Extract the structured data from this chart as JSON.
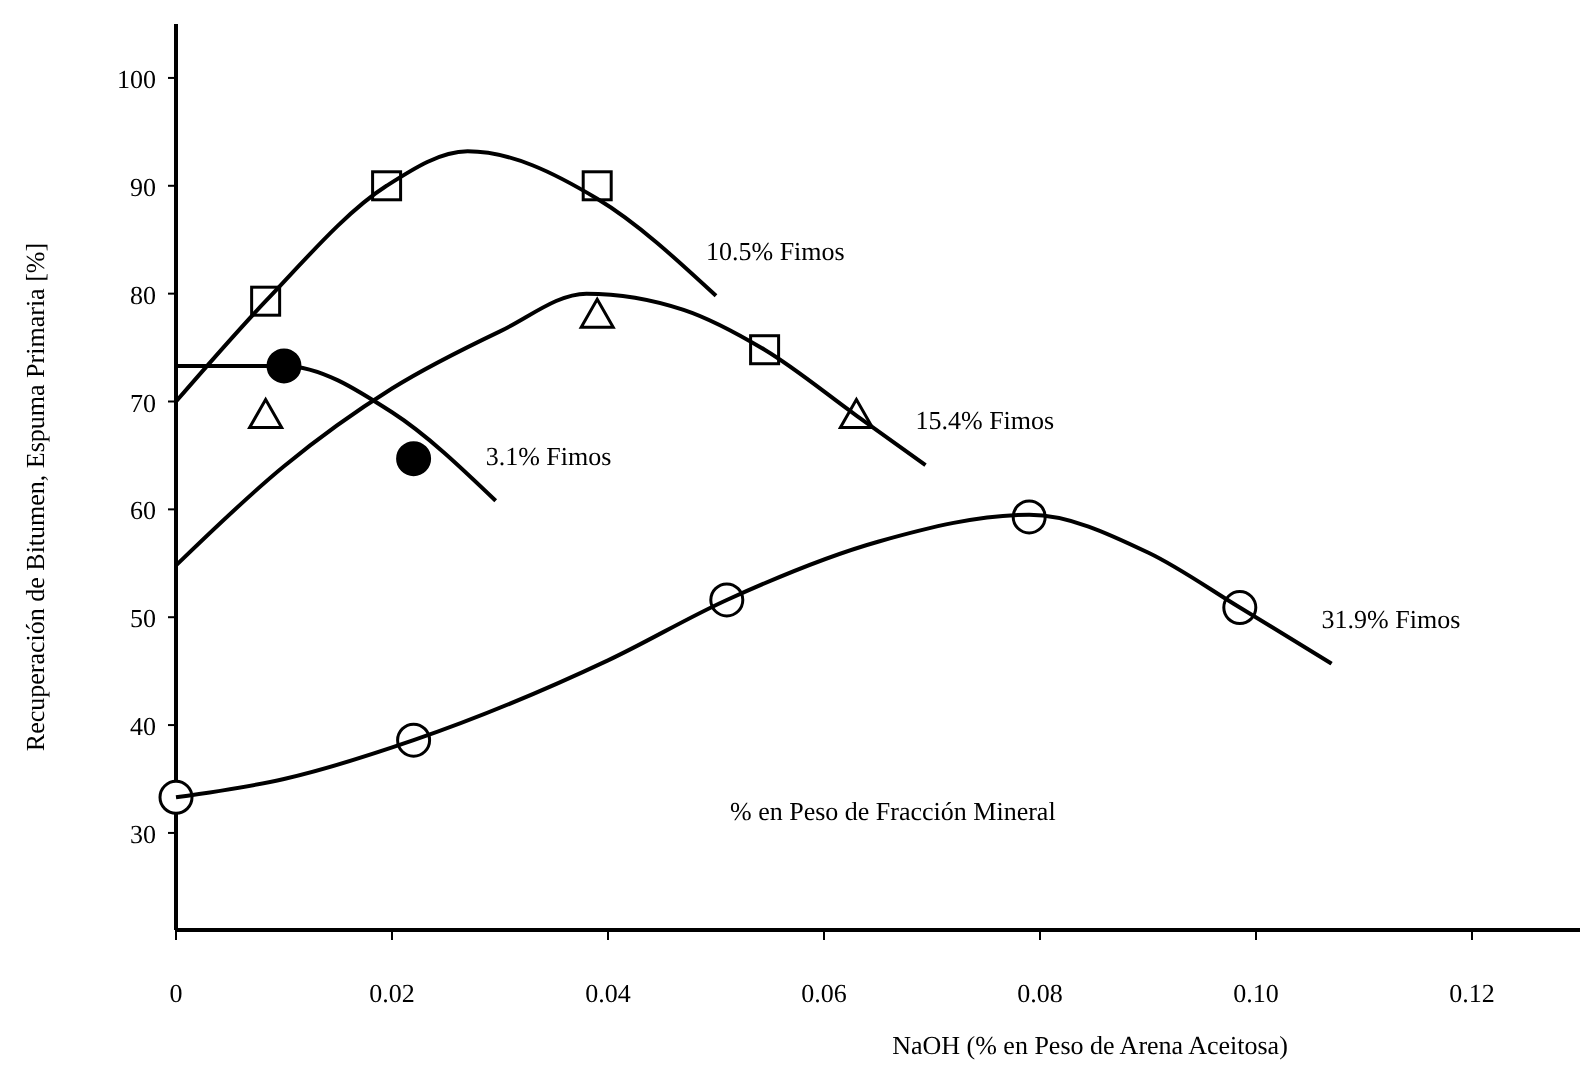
{
  "chart_data": {
    "type": "scatter",
    "xlabel": "NaOH (% en Peso de Arena Aceitosa)",
    "ylabel": "Recuperación de Bitumen, Espuma Primaria [%]",
    "xlim": [
      0,
      0.13
    ],
    "ylim": [
      21,
      105
    ],
    "xticks": [
      0,
      {
        "value": 0.02,
        "label": "0.02"
      },
      {
        "value": 0.04,
        "label": "0.04"
      },
      {
        "value": 0.06,
        "label": "0.06"
      },
      {
        "value": 0.08,
        "label": "0.08"
      },
      {
        "value": 0.1,
        "label": "0.10"
      },
      {
        "value": 0.12,
        "label": "0.12"
      }
    ],
    "yticks": [
      30,
      40,
      50,
      60,
      70,
      80,
      90,
      100
    ],
    "annotations": [
      "% en Peso de Fracción Mineral"
    ],
    "series": [
      {
        "marker": "square",
        "color": "#ffffff",
        "x": [
          0.0083,
          0.0195,
          0.039,
          0.0545
        ],
        "values": [
          79.3,
          90,
          90,
          74.8
        ]
      },
      {
        "marker": "triangle",
        "color": "#ffffff",
        "x": [
          0.0083,
          0.039,
          0.063
        ],
        "values": [
          68.7,
          78,
          68.7
        ]
      },
      {
        "marker": "circle",
        "color": "#000000",
        "x": [
          0.01,
          0.022
        ],
        "values": [
          73.3,
          64.7
        ]
      },
      {
        "marker": "circle",
        "color": "#ffffff",
        "x": [
          0,
          0.022,
          0.051,
          0.079,
          0.0985
        ],
        "values": [
          33.3,
          38.6,
          51.6,
          59.3,
          50.9
        ]
      },
      {
        "type": "line",
        "name": "10.5% Fimos",
        "color": "#000000",
        "x": [
          0,
          0.0083,
          0.0195,
          0.027,
          0.039,
          0.05
        ],
        "values": [
          70,
          79.3,
          90,
          93.2,
          88.8,
          79.8
        ]
      },
      {
        "type": "line",
        "name": "15.4% Fimos",
        "color": "#000000",
        "x": [
          0,
          0.01,
          0.02,
          0.03,
          0.038,
          0.047,
          0.0545,
          0.063,
          0.0694
        ],
        "values": [
          54.8,
          64,
          71.2,
          76.5,
          80,
          78.5,
          74.8,
          68.7,
          64.1
        ]
      },
      {
        "type": "line",
        "name": "3.1% Fimos",
        "color": "#000000",
        "x": [
          0,
          0.01,
          0.02,
          0.0296
        ],
        "values": [
          73.3,
          73.3,
          69,
          60.8
        ]
      },
      {
        "type": "line",
        "name": "31.9% Fimos",
        "color": "#000000",
        "x": [
          0,
          0.01,
          0.022,
          0.04,
          0.051,
          0.065,
          0.079,
          0.09,
          0.0985,
          0.107
        ],
        "values": [
          33.3,
          35,
          38.6,
          46,
          51.6,
          57,
          59.5,
          56,
          50.9,
          45.7
        ]
      }
    ]
  }
}
